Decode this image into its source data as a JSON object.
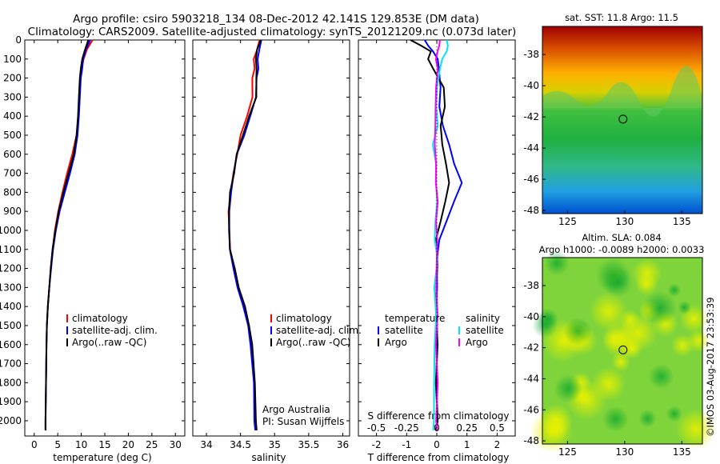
{
  "title_line1": "Argo profile: csiro 5903218_134 08-Dec-2012 42.141S 129.853E (DM data)",
  "title_line2": "Climatology: CARS2009. Satellite-adjusted climatology: synTS_20121209.nc (0.073d later)",
  "colors": {
    "climatology": "#ff0000",
    "satellite": "#0000ff",
    "argo": "#000000",
    "sal_satellite": "#00e5ee",
    "sal_argo": "#ff00ff"
  },
  "panels": {
    "temperature": {
      "xlabel": "temperature (deg C)",
      "xticks": [
        "0",
        "5",
        "10",
        "15",
        "20",
        "25",
        "30"
      ],
      "legend": [
        "climatology",
        "satellite-adj. clim.",
        "Argo(..raw -QC)"
      ]
    },
    "salinity": {
      "xlabel": "salinity",
      "xticks": [
        "34",
        "34.5",
        "35",
        "35.5",
        "36"
      ],
      "legend": [
        "climatology",
        "satellite-adj. clim.",
        "Argo(..raw -QC)"
      ],
      "note1": "Argo Australia",
      "note2": "PI: Susan Wijffels"
    },
    "difference": {
      "xlabel": "T difference from climatology",
      "xticks": [
        "-2",
        "-1",
        "0",
        "1",
        "2"
      ],
      "top_label": "S difference from climatology",
      "top_ticks": [
        "-0.5",
        "-0.25",
        "0",
        "0.25",
        "0.5"
      ],
      "legend_temp_title": "temperature",
      "legend_sal_title": "salinity",
      "legend_items": [
        "satellite",
        "Argo"
      ]
    },
    "depth_ticks": [
      "0",
      "100",
      "200",
      "300",
      "400",
      "500",
      "600",
      "700",
      "800",
      "900",
      "1000",
      "1100",
      "1200",
      "1300",
      "1400",
      "1500",
      "1600",
      "1700",
      "1800",
      "1900",
      "2000"
    ]
  },
  "maps": {
    "sst_title": "sat. SST: 11.8 Argo: 11.5",
    "sla_title1": "Altim. SLA: 0.084",
    "sla_title2": "Argo h1000: -0.0089 h2000: 0.0033",
    "lon_ticks": [
      "125",
      "130",
      "135"
    ],
    "lat_ticks": [
      "-38",
      "-40",
      "-42",
      "-44",
      "-46",
      "-48"
    ],
    "float_lon": 129.853,
    "float_lat": -42.141
  },
  "stamp": "©IMOS 03-Aug-2017 23:53:39",
  "chart_data": [
    {
      "type": "line",
      "title": "",
      "xlabel": "temperature (deg C)",
      "ylabel": "",
      "xlim": [
        -2,
        32
      ],
      "ylim": [
        2080,
        0
      ],
      "series": [
        {
          "name": "climatology",
          "color": "#ff0000",
          "x": [
            12.4,
            11.2,
            10.5,
            10.1,
            9.8,
            9.6,
            9.4,
            9.0,
            8.1,
            7.0,
            6.0,
            5.1,
            4.4,
            3.9,
            3.5,
            3.2,
            2.9,
            2.7,
            2.6,
            2.5,
            2.4,
            2.4
          ],
          "y": [
            0,
            50,
            100,
            150,
            200,
            300,
            400,
            500,
            600,
            700,
            800,
            900,
            1000,
            1100,
            1200,
            1300,
            1400,
            1500,
            1600,
            1800,
            2000,
            2050
          ]
        },
        {
          "name": "satellite-adj. clim.",
          "color": "#0000ff",
          "x": [
            11.9,
            11.0,
            10.4,
            10.2,
            9.9,
            9.7,
            9.5,
            9.2,
            8.6,
            7.6,
            6.5,
            5.4,
            4.6,
            4.0,
            3.6,
            3.2,
            2.9,
            2.7,
            2.6,
            2.5,
            2.4,
            2.4
          ],
          "y": [
            0,
            50,
            100,
            150,
            200,
            300,
            400,
            500,
            600,
            700,
            800,
            900,
            1000,
            1100,
            1200,
            1300,
            1400,
            1500,
            1600,
            1800,
            2000,
            2050
          ]
        },
        {
          "name": "Argo(..raw -QC)",
          "color": "#000000",
          "x": [
            11.5,
            10.8,
            10.2,
            9.9,
            9.7,
            9.5,
            9.3,
            9.0,
            8.4,
            7.3,
            6.2,
            5.2,
            4.5,
            3.9,
            3.5,
            3.2,
            2.9,
            2.7,
            2.6,
            2.5,
            2.4,
            2.4
          ],
          "y": [
            0,
            50,
            100,
            150,
            200,
            300,
            400,
            500,
            600,
            700,
            800,
            900,
            1000,
            1100,
            1200,
            1300,
            1400,
            1500,
            1600,
            1800,
            2000,
            2050
          ]
        }
      ]
    },
    {
      "type": "line",
      "title": "",
      "xlabel": "salinity",
      "ylabel": "",
      "xlim": [
        33.8,
        36.1
      ],
      "ylim": [
        2080,
        0
      ],
      "note": [
        "Argo Australia",
        "PI: Susan Wijffels"
      ],
      "series": [
        {
          "name": "climatology",
          "color": "#ff0000",
          "x": [
            34.78,
            34.74,
            34.7,
            34.7,
            34.68,
            34.67,
            34.6,
            34.5,
            34.45,
            34.4,
            34.35,
            34.33,
            34.33,
            34.35,
            34.4,
            34.47,
            34.55,
            34.62,
            34.66,
            34.7,
            34.72,
            34.72
          ],
          "y": [
            0,
            50,
            100,
            150,
            200,
            300,
            400,
            500,
            600,
            700,
            800,
            900,
            1000,
            1100,
            1200,
            1300,
            1400,
            1500,
            1600,
            1800,
            2000,
            2050
          ]
        },
        {
          "name": "satellite-adj. clim.",
          "color": "#0000ff",
          "x": [
            34.8,
            34.78,
            34.75,
            34.76,
            34.74,
            34.72,
            34.65,
            34.55,
            34.45,
            34.4,
            34.36,
            34.34,
            34.33,
            34.35,
            34.39,
            34.46,
            34.54,
            34.61,
            34.65,
            34.69,
            34.71,
            34.71
          ],
          "y": [
            0,
            50,
            100,
            150,
            200,
            300,
            400,
            500,
            600,
            700,
            800,
            900,
            1000,
            1100,
            1200,
            1300,
            1400,
            1500,
            1600,
            1800,
            2000,
            2050
          ]
        },
        {
          "name": "Argo(..raw -QC)",
          "color": "#000000",
          "x": [
            34.79,
            34.75,
            34.72,
            34.74,
            34.73,
            34.73,
            34.63,
            34.53,
            34.45,
            34.4,
            34.35,
            34.33,
            34.33,
            34.35,
            34.41,
            34.48,
            34.56,
            34.63,
            34.67,
            34.71,
            34.73,
            34.73
          ],
          "y": [
            0,
            50,
            100,
            150,
            200,
            300,
            400,
            500,
            600,
            700,
            800,
            900,
            1000,
            1100,
            1200,
            1300,
            1400,
            1500,
            1600,
            1800,
            2000,
            2050
          ]
        }
      ]
    },
    {
      "type": "line",
      "title": "",
      "xlabel": "T difference from climatology",
      "ylabel": "",
      "xlim": [
        -2.6,
        2.6
      ],
      "ylim": [
        2080,
        0
      ],
      "series": [
        {
          "name": "temperature satellite",
          "color": "#0000ff",
          "x": [
            -0.4,
            -0.3,
            -0.1,
            0.0,
            0.1,
            0.1,
            0.1,
            0.2,
            0.4,
            0.6,
            0.8,
            0.6,
            0.3,
            0.1,
            0.0,
            0.0,
            0.0,
            0.0,
            0.0,
            0.0,
            0.0
          ],
          "y": [
            0,
            30,
            60,
            100,
            150,
            250,
            350,
            450,
            550,
            650,
            750,
            850,
            950,
            1050,
            1150,
            1300,
            1450,
            1600,
            1800,
            2000,
            2050
          ]
        },
        {
          "name": "temperature Argo",
          "color": "#000000",
          "x": [
            -0.9,
            -0.5,
            -0.2,
            -0.3,
            -0.1,
            0.2,
            0.3,
            0.1,
            0.2,
            0.3,
            0.4,
            0.3,
            0.1,
            0.0,
            0.0,
            0.0,
            0.0,
            0.0,
            0.0,
            0.0,
            0.0
          ],
          "y": [
            0,
            30,
            60,
            100,
            150,
            250,
            350,
            450,
            550,
            650,
            750,
            850,
            950,
            1050,
            1150,
            1300,
            1450,
            1600,
            1800,
            2000,
            2050
          ]
        },
        {
          "name": "salinity satellite",
          "color": "#00e5ee",
          "x": [
            0.3,
            0.4,
            0.3,
            0.2,
            0.1,
            0.0,
            0.0,
            0.0,
            -0.1,
            -0.05,
            0.0,
            0.0,
            -0.05,
            -0.05,
            0.0,
            -0.05,
            -0.05,
            -0.05,
            -0.1,
            -0.1,
            -0.1
          ],
          "y": [
            0,
            30,
            60,
            100,
            150,
            250,
            350,
            450,
            550,
            650,
            750,
            850,
            950,
            1050,
            1150,
            1300,
            1450,
            1600,
            1800,
            2000,
            2050
          ]
        },
        {
          "name": "salinity Argo",
          "color": "#ff00ff",
          "x": [
            0.1,
            0.1,
            0.0,
            0.0,
            0.0,
            0.0,
            -0.05,
            -0.05,
            -0.05,
            -0.05,
            0.0,
            0.0,
            0.0,
            0.0,
            0.0,
            0.0,
            0.0,
            0.0,
            0.0,
            0.0,
            0.0
          ],
          "y": [
            0,
            30,
            60,
            100,
            150,
            250,
            350,
            450,
            550,
            650,
            750,
            850,
            950,
            1050,
            1150,
            1300,
            1450,
            1600,
            1800,
            2000,
            2050
          ]
        }
      ]
    }
  ]
}
